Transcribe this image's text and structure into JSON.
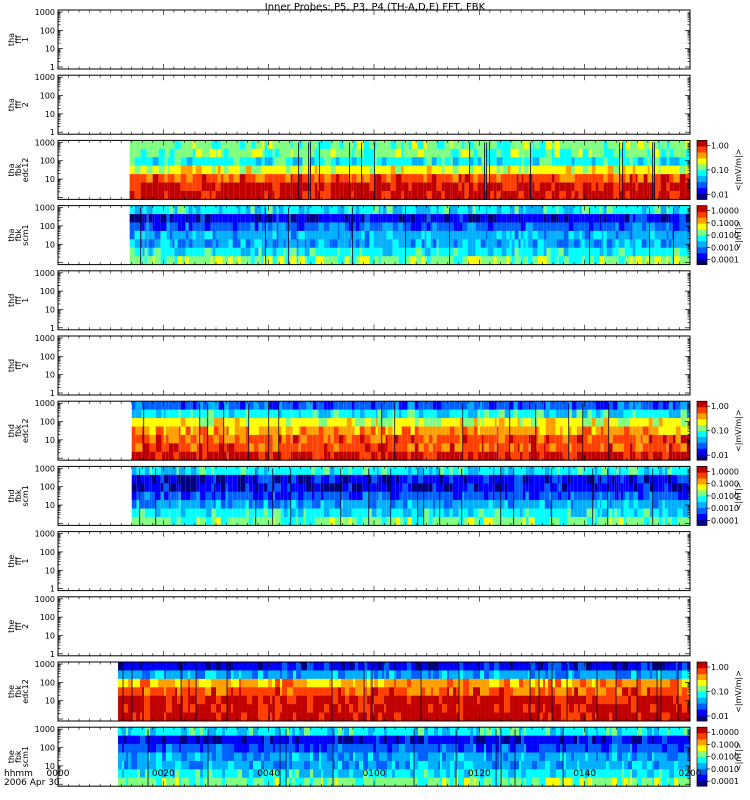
{
  "title": "Inner Probes: P5, P3, P4 (TH-A,D,E) FFT, FBK",
  "colors": {
    "background": "#ffffff",
    "axes": "#000000",
    "colormap": [
      "#000080",
      "#0000ff",
      "#0060ff",
      "#00b0ff",
      "#00ffff",
      "#80ff80",
      "#ffff00",
      "#ffa000",
      "#ff4000",
      "#c00000"
    ]
  },
  "x_axis": {
    "label_line1": "hhmm",
    "label_line2": "2006 Apr 30",
    "ticks": [
      "0000",
      "0020",
      "0040",
      "0100",
      "0120",
      "0140",
      "0200"
    ],
    "range_minutes": [
      0,
      120
    ]
  },
  "chart_data": [
    {
      "type": "heatmap",
      "ylabel": [
        "tha",
        "fff",
        "1"
      ],
      "yscale": "log",
      "ylim": [
        1,
        1000
      ],
      "yticks": [
        "1000",
        "100",
        "10",
        "1"
      ],
      "has_data": false
    },
    {
      "type": "heatmap",
      "ylabel": [
        "tha",
        "fff",
        "2"
      ],
      "yscale": "log",
      "ylim": [
        1,
        1000
      ],
      "yticks": [
        "1000",
        "100",
        "10",
        "1"
      ],
      "has_data": false
    },
    {
      "type": "heatmap",
      "ylabel": [
        "tha",
        "fbk",
        "edc12"
      ],
      "yscale": "log",
      "ylim": [
        1,
        1000
      ],
      "yticks": [
        "1000",
        "100",
        "10"
      ],
      "has_data": true,
      "data_start_min": 13.6,
      "colorbar": {
        "label": "<|mV/m|>",
        "ticks": [
          "1.00",
          "0.10",
          "0.01"
        ],
        "scale": "log"
      },
      "bands": [
        5,
        5,
        4,
        6,
        8,
        9,
        9
      ]
    },
    {
      "type": "heatmap",
      "ylabel": [
        "tha",
        "fbk",
        "scm1"
      ],
      "yscale": "log",
      "ylim": [
        1,
        1000
      ],
      "yticks": [
        "1000",
        "100",
        "10"
      ],
      "has_data": true,
      "data_start_min": 13.6,
      "colorbar": {
        "label": "<|nT|>",
        "ticks": [
          "1.0000",
          "0.1000",
          "0.0100",
          "0.0010",
          "0.0001"
        ],
        "scale": "log"
      },
      "bands": [
        4,
        1,
        2,
        3,
        3,
        4,
        5
      ]
    },
    {
      "type": "heatmap",
      "ylabel": [
        "thd",
        "fff",
        "1"
      ],
      "yscale": "log",
      "ylim": [
        1,
        1000
      ],
      "yticks": [
        "1000",
        "100",
        "10",
        "1"
      ],
      "has_data": false
    },
    {
      "type": "heatmap",
      "ylabel": [
        "thd",
        "fff",
        "2"
      ],
      "yscale": "log",
      "ylim": [
        1,
        1000
      ],
      "yticks": [
        "1000",
        "100",
        "10",
        "1"
      ],
      "has_data": false
    },
    {
      "type": "heatmap",
      "ylabel": [
        "thd",
        "fbk",
        "edc12"
      ],
      "yscale": "log",
      "ylim": [
        1,
        1000
      ],
      "yticks": [
        "1000",
        "100",
        "10"
      ],
      "has_data": true,
      "data_start_min": 14.0,
      "colorbar": {
        "label": "<|mV/m|>",
        "ticks": [
          "1.00",
          "0.10",
          "0.01"
        ],
        "scale": "log"
      },
      "bands": [
        2,
        4,
        6,
        7,
        8,
        8,
        9
      ]
    },
    {
      "type": "heatmap",
      "ylabel": [
        "thd",
        "fbk",
        "scm1"
      ],
      "yscale": "log",
      "ylim": [
        1,
        1000
      ],
      "yticks": [
        "1000",
        "100",
        "10"
      ],
      "has_data": true,
      "data_start_min": 14.0,
      "colorbar": {
        "label": "<|nT|>",
        "ticks": [
          "1.0000",
          "0.1000",
          "0.0100",
          "0.0010",
          "0.0001"
        ],
        "scale": "log"
      },
      "bands": [
        4,
        1,
        1,
        2,
        3,
        4,
        5
      ]
    },
    {
      "type": "heatmap",
      "ylabel": [
        "the",
        "fff",
        "1"
      ],
      "yscale": "log",
      "ylim": [
        1,
        1000
      ],
      "yticks": [
        "1000",
        "100",
        "10",
        "1"
      ],
      "has_data": false
    },
    {
      "type": "heatmap",
      "ylabel": [
        "the",
        "fff",
        "2"
      ],
      "yscale": "log",
      "ylim": [
        1,
        1000
      ],
      "yticks": [
        "1000",
        "100",
        "10",
        "1"
      ],
      "has_data": false
    },
    {
      "type": "heatmap",
      "ylabel": [
        "the",
        "fbk",
        "edc12"
      ],
      "yscale": "log",
      "ylim": [
        1,
        1000
      ],
      "yticks": [
        "1000",
        "100",
        "10"
      ],
      "has_data": true,
      "data_start_min": 11.4,
      "colorbar": {
        "label": "<|mV/m|>",
        "ticks": [
          "1.00",
          "0.10",
          "0.01"
        ],
        "scale": "log"
      },
      "bands": [
        1,
        3,
        7,
        8,
        9,
        9,
        9
      ]
    },
    {
      "type": "heatmap",
      "ylabel": [
        "the",
        "fbk",
        "scm1"
      ],
      "yscale": "log",
      "ylim": [
        1,
        1000
      ],
      "yticks": [
        "1000",
        "100",
        "10"
      ],
      "has_data": true,
      "data_start_min": 11.4,
      "colorbar": {
        "label": "<|nT|>",
        "ticks": [
          "1.0000",
          "0.1000",
          "0.0100",
          "0.0010",
          "0.0001"
        ],
        "scale": "log"
      },
      "bands": [
        4,
        1,
        2,
        3,
        3,
        4,
        5
      ]
    }
  ]
}
